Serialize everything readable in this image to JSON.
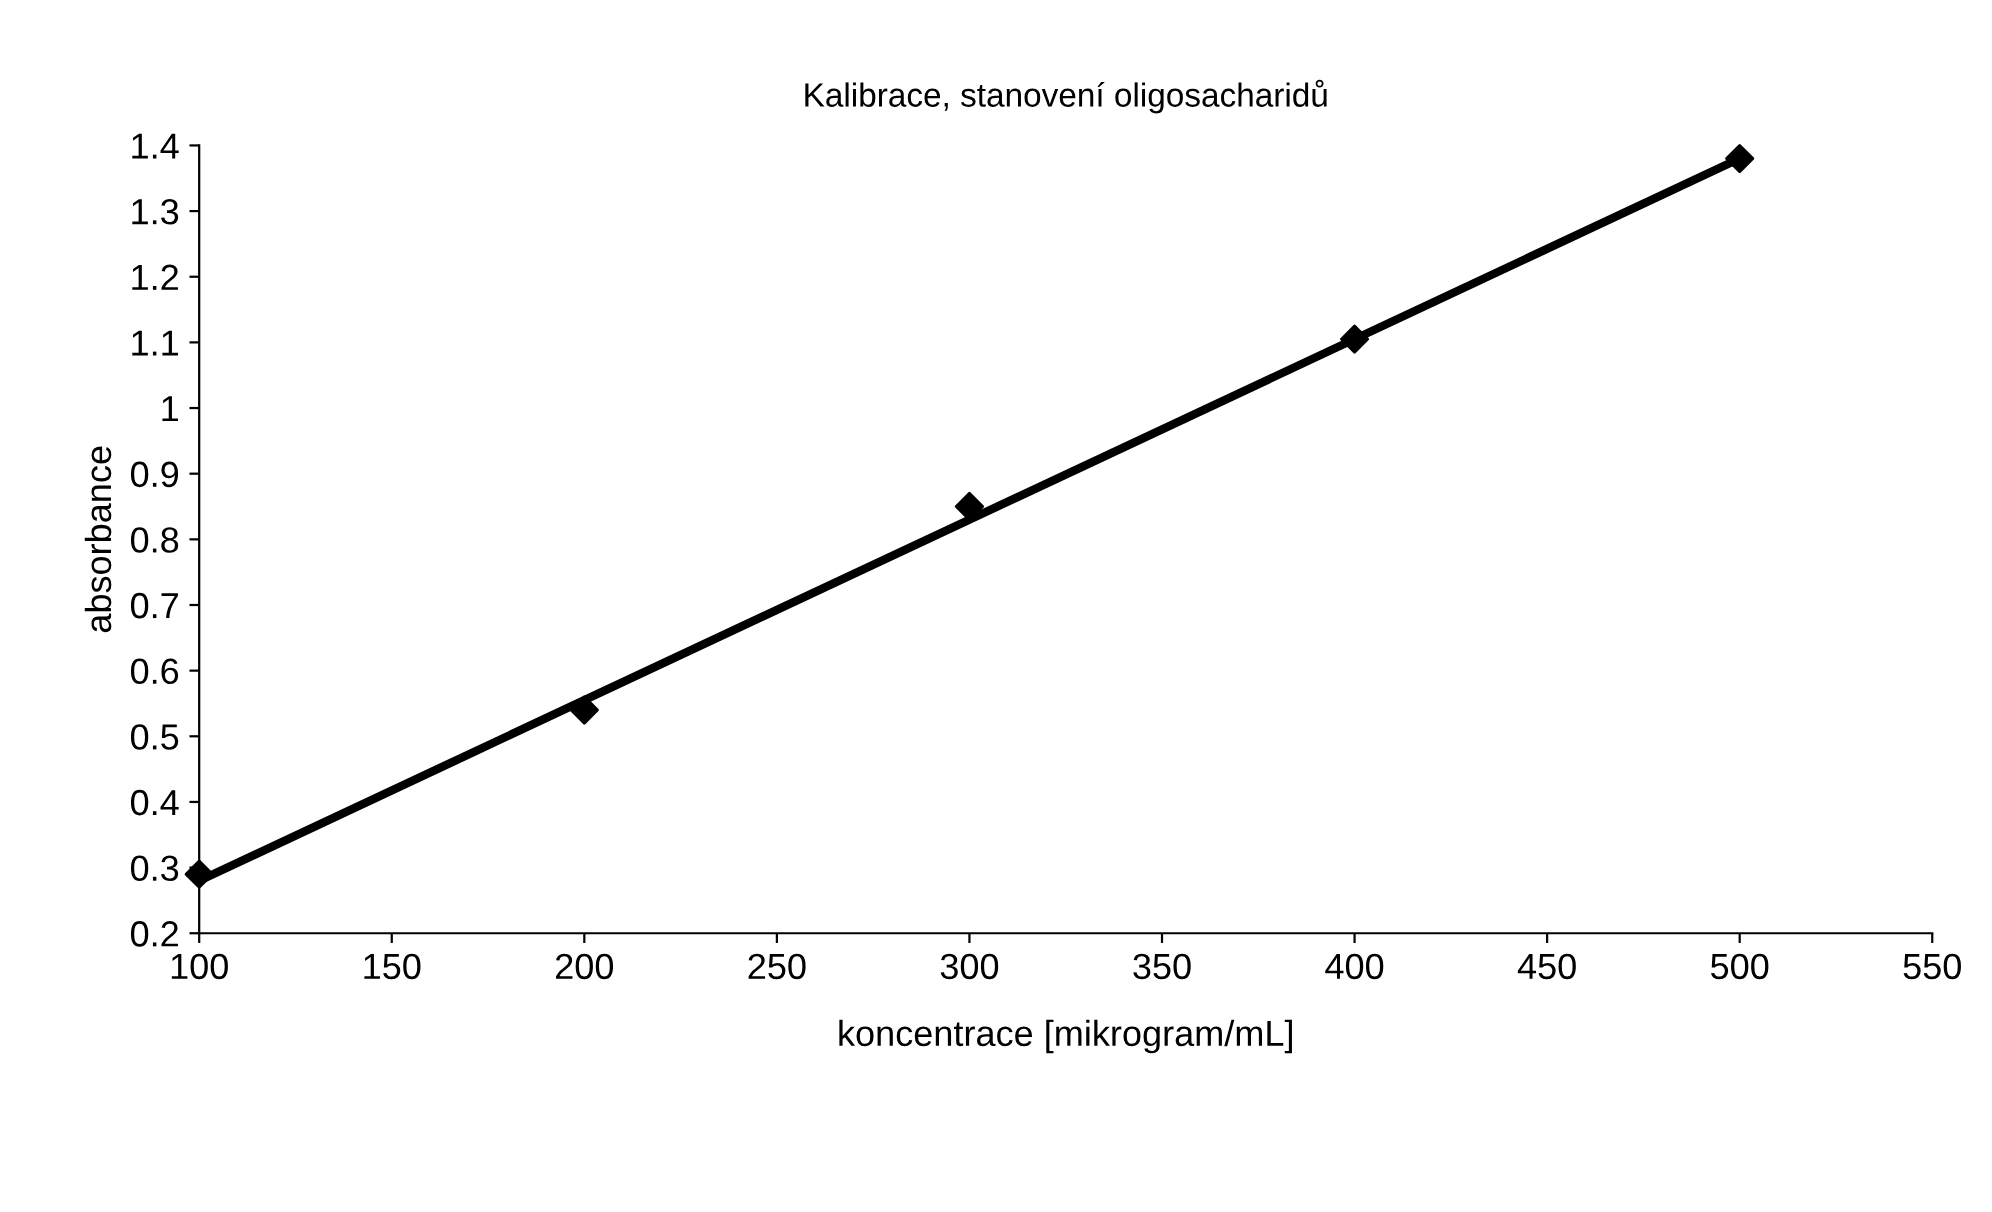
{
  "chart_data": {
    "type": "scatter",
    "title": "Kalibrace, stanovení oligosacharidů",
    "xlabel": "koncentrace [mikrogram/mL]",
    "ylabel": "absorbance",
    "xlim": [
      100,
      550
    ],
    "xticks": [
      100,
      150,
      200,
      250,
      300,
      350,
      400,
      450,
      500,
      550
    ],
    "ylim": [
      0.2,
      1.4
    ],
    "yticks": [
      0.2,
      0.3,
      0.4,
      0.5,
      0.6,
      0.7,
      0.8,
      0.9,
      1,
      1.1,
      1.2,
      1.3,
      1.4
    ],
    "grid": false,
    "legend": false,
    "series": [
      {
        "color": "#000000",
        "marker": "diamond",
        "x": [
          100,
          200,
          300,
          400,
          500
        ],
        "values": [
          0.29,
          0.54,
          0.85,
          1.105,
          1.38
        ]
      },
      {
        "type": "line",
        "color": "#000000",
        "marker": "none",
        "line_style": "solid",
        "x": [
          100,
          500
        ],
        "values": [
          0.28,
          1.38
        ]
      }
    ]
  }
}
